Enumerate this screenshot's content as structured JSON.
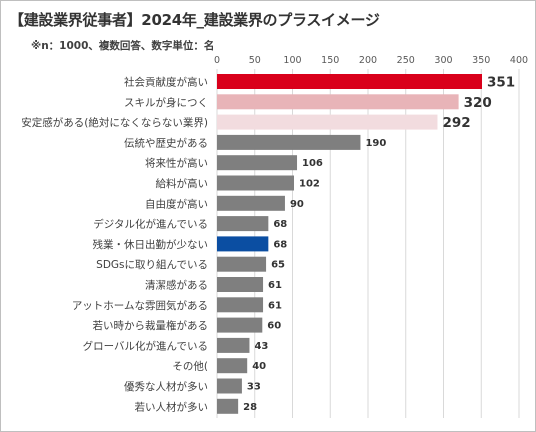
{
  "header": {
    "title": "【建設業界従事者】2024年_建設業界のプラスイメージ",
    "subtitle": "※n：1000、複数回答、数字単位：名"
  },
  "chart_data": {
    "type": "bar",
    "orientation": "horizontal",
    "title": "【建設業界従事者】2024年_建設業界のプラスイメージ",
    "subtitle": "※n：1000、複数回答、数字単位：名",
    "xlim": [
      0,
      400
    ],
    "xticks": [
      0,
      50,
      100,
      150,
      200,
      250,
      300,
      350,
      400
    ],
    "x_axis_position": "top",
    "grid": true,
    "legend": "none",
    "categories": [
      "社会貢献度が高い",
      "スキルが身につく",
      "安定感がある(絶対になくならない業界)",
      "伝統や歴史がある",
      "将来性が高い",
      "給料が高い",
      "自由度が高い",
      "デジタル化が進んでいる",
      "残業・休日出勤が少ない",
      "SDGsに取り組んでいる",
      "清潔感がある",
      "アットホームな雰囲気がある",
      "若い時から裁量権がある",
      "グローバル化が進んでいる",
      "その他(",
      "優秀な人材が多い",
      "若い人材が多い"
    ],
    "values": [
      351,
      320,
      292,
      190,
      106,
      102,
      90,
      68,
      68,
      65,
      61,
      61,
      60,
      43,
      40,
      33,
      28
    ],
    "colors": [
      "#d9001b",
      "#e8b4b8",
      "#f2dcdf",
      "#7f7f7f",
      "#7f7f7f",
      "#7f7f7f",
      "#7f7f7f",
      "#7f7f7f",
      "#0b4ea2",
      "#7f7f7f",
      "#7f7f7f",
      "#7f7f7f",
      "#7f7f7f",
      "#7f7f7f",
      "#7f7f7f",
      "#7f7f7f",
      "#7f7f7f"
    ]
  }
}
